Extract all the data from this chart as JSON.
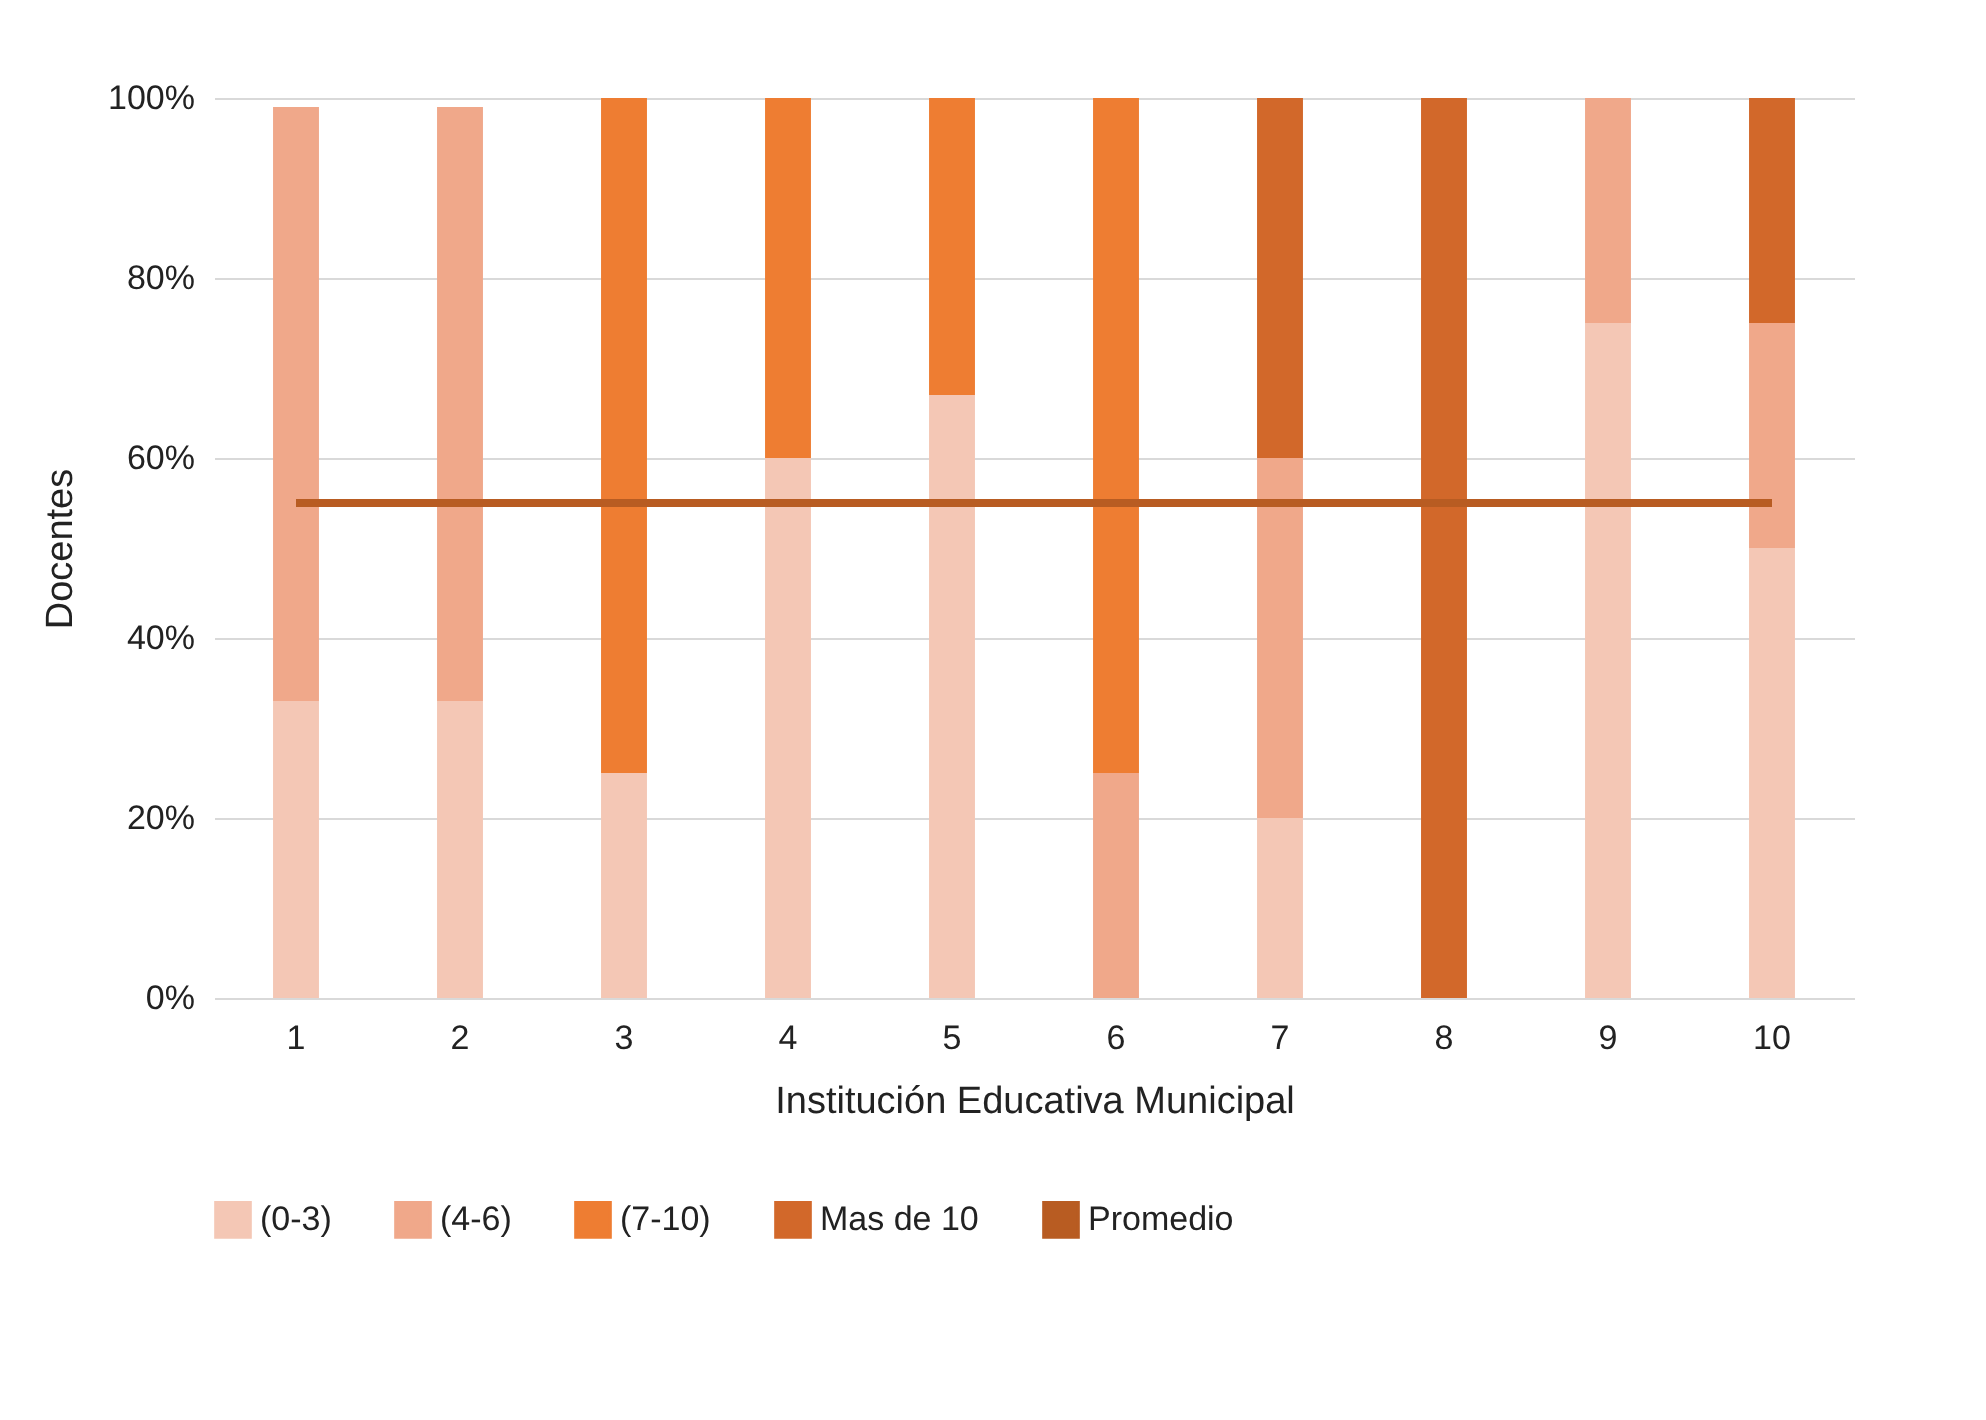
{
  "chart_data": {
    "type": "bar",
    "stacked": true,
    "xlabel": "Institución Educativa Municipal",
    "ylabel": "Docentes",
    "categories": [
      "1",
      "2",
      "3",
      "4",
      "5",
      "6",
      "7",
      "8",
      "9",
      "10"
    ],
    "series": [
      {
        "name": "(0-3)",
        "color": "#f4c7b5",
        "values": [
          33,
          33,
          25,
          60,
          67,
          0,
          20,
          0,
          75,
          50
        ]
      },
      {
        "name": "(4-6)",
        "color": "#f0a88a",
        "values": [
          66,
          66,
          0,
          0,
          0,
          25,
          40,
          0,
          25,
          25
        ]
      },
      {
        "name": "(7-10)",
        "color": "#ee7d32",
        "values": [
          0,
          0,
          75,
          40,
          33,
          75,
          0,
          0,
          0,
          0
        ]
      },
      {
        "name": "Mas de 10",
        "color": "#d2682a",
        "values": [
          0,
          0,
          0,
          0,
          0,
          0,
          40,
          100,
          0,
          25
        ]
      },
      {
        "name": "Promedio",
        "type": "line",
        "color": "#b85c22",
        "values": [
          55,
          55,
          55,
          55,
          55,
          55,
          55,
          55,
          55,
          55
        ]
      }
    ],
    "ylim": [
      0,
      100
    ],
    "yticks": [
      {
        "value": 0,
        "label": "0%"
      },
      {
        "value": 20,
        "label": "20%"
      },
      {
        "value": 40,
        "label": "40%"
      },
      {
        "value": 60,
        "label": "60%"
      },
      {
        "value": 80,
        "label": "80%"
      },
      {
        "value": 100,
        "label": "100%"
      }
    ],
    "grid": "y",
    "legend": "bottom"
  }
}
